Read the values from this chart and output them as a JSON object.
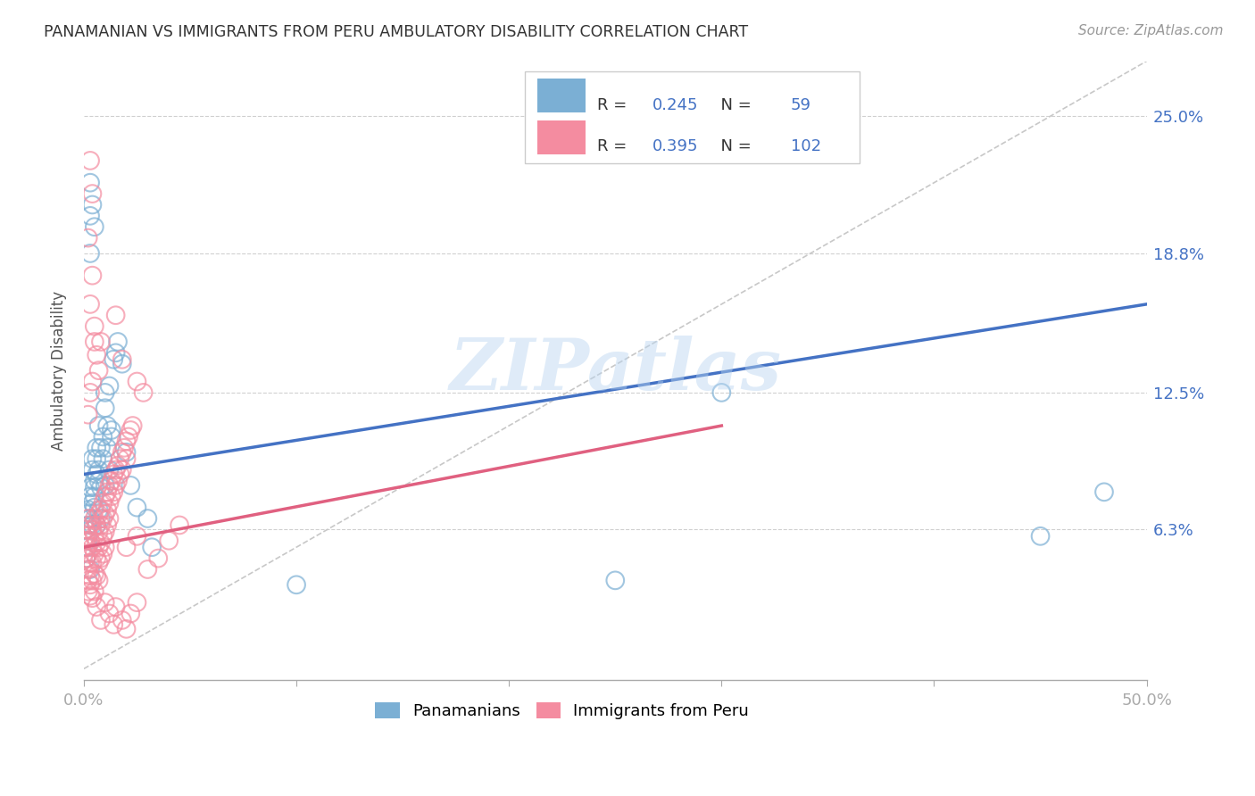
{
  "title": "PANAMANIAN VS IMMIGRANTS FROM PERU AMBULATORY DISABILITY CORRELATION CHART",
  "source": "Source: ZipAtlas.com",
  "ylabel": "Ambulatory Disability",
  "ytick_labels": [
    "6.3%",
    "12.5%",
    "18.8%",
    "25.0%"
  ],
  "ytick_values": [
    0.063,
    0.125,
    0.188,
    0.25
  ],
  "xlim": [
    0.0,
    0.5
  ],
  "ylim": [
    -0.005,
    0.275
  ],
  "watermark": "ZIPatlas",
  "blue_color": "#7bafd4",
  "pink_color": "#f48ca0",
  "line_blue": "#4472c4",
  "line_pink": "#e06080",
  "diagonal_color": "#c8c8c8",
  "panamanian_scatter": [
    [
      0.001,
      0.063
    ],
    [
      0.001,
      0.07
    ],
    [
      0.002,
      0.058
    ],
    [
      0.002,
      0.065
    ],
    [
      0.002,
      0.072
    ],
    [
      0.003,
      0.068
    ],
    [
      0.003,
      0.078
    ],
    [
      0.003,
      0.082
    ],
    [
      0.004,
      0.075
    ],
    [
      0.004,
      0.065
    ],
    [
      0.004,
      0.09
    ],
    [
      0.004,
      0.095
    ],
    [
      0.005,
      0.085
    ],
    [
      0.005,
      0.073
    ],
    [
      0.005,
      0.082
    ],
    [
      0.005,
      0.078
    ],
    [
      0.006,
      0.065
    ],
    [
      0.006,
      0.088
    ],
    [
      0.006,
      0.095
    ],
    [
      0.006,
      0.1
    ],
    [
      0.007,
      0.085
    ],
    [
      0.007,
      0.072
    ],
    [
      0.007,
      0.11
    ],
    [
      0.007,
      0.09
    ],
    [
      0.008,
      0.082
    ],
    [
      0.008,
      0.1
    ],
    [
      0.008,
      0.068
    ],
    [
      0.009,
      0.105
    ],
    [
      0.009,
      0.095
    ],
    [
      0.01,
      0.083
    ],
    [
      0.01,
      0.125
    ],
    [
      0.01,
      0.118
    ],
    [
      0.011,
      0.11
    ],
    [
      0.011,
      0.1
    ],
    [
      0.012,
      0.09
    ],
    [
      0.012,
      0.128
    ],
    [
      0.013,
      0.105
    ],
    [
      0.013,
      0.108
    ],
    [
      0.014,
      0.14
    ],
    [
      0.015,
      0.143
    ],
    [
      0.016,
      0.148
    ],
    [
      0.018,
      0.138
    ],
    [
      0.02,
      0.098
    ],
    [
      0.022,
      0.083
    ],
    [
      0.025,
      0.073
    ],
    [
      0.03,
      0.068
    ],
    [
      0.032,
      0.055
    ],
    [
      0.003,
      0.188
    ],
    [
      0.003,
      0.205
    ],
    [
      0.005,
      0.2
    ],
    [
      0.003,
      0.22
    ],
    [
      0.004,
      0.21
    ],
    [
      0.002,
      0.055
    ],
    [
      0.001,
      0.05
    ],
    [
      0.003,
      0.045
    ],
    [
      0.3,
      0.125
    ],
    [
      0.48,
      0.08
    ],
    [
      0.45,
      0.06
    ],
    [
      0.25,
      0.04
    ],
    [
      0.1,
      0.038
    ]
  ],
  "peru_scatter": [
    [
      0.001,
      0.063
    ],
    [
      0.001,
      0.058
    ],
    [
      0.001,
      0.055
    ],
    [
      0.001,
      0.05
    ],
    [
      0.002,
      0.068
    ],
    [
      0.002,
      0.06
    ],
    [
      0.002,
      0.052
    ],
    [
      0.002,
      0.045
    ],
    [
      0.002,
      0.04
    ],
    [
      0.002,
      0.035
    ],
    [
      0.003,
      0.065
    ],
    [
      0.003,
      0.058
    ],
    [
      0.003,
      0.048
    ],
    [
      0.003,
      0.042
    ],
    [
      0.003,
      0.038
    ],
    [
      0.003,
      0.033
    ],
    [
      0.004,
      0.063
    ],
    [
      0.004,
      0.055
    ],
    [
      0.004,
      0.048
    ],
    [
      0.004,
      0.04
    ],
    [
      0.004,
      0.032
    ],
    [
      0.005,
      0.068
    ],
    [
      0.005,
      0.06
    ],
    [
      0.005,
      0.052
    ],
    [
      0.005,
      0.043
    ],
    [
      0.005,
      0.035
    ],
    [
      0.006,
      0.065
    ],
    [
      0.006,
      0.057
    ],
    [
      0.006,
      0.05
    ],
    [
      0.006,
      0.042
    ],
    [
      0.007,
      0.07
    ],
    [
      0.007,
      0.062
    ],
    [
      0.007,
      0.055
    ],
    [
      0.007,
      0.048
    ],
    [
      0.007,
      0.04
    ],
    [
      0.008,
      0.072
    ],
    [
      0.008,
      0.065
    ],
    [
      0.008,
      0.057
    ],
    [
      0.008,
      0.05
    ],
    [
      0.009,
      0.075
    ],
    [
      0.009,
      0.068
    ],
    [
      0.009,
      0.06
    ],
    [
      0.009,
      0.052
    ],
    [
      0.01,
      0.078
    ],
    [
      0.01,
      0.07
    ],
    [
      0.01,
      0.062
    ],
    [
      0.01,
      0.055
    ],
    [
      0.011,
      0.08
    ],
    [
      0.011,
      0.072
    ],
    [
      0.011,
      0.065
    ],
    [
      0.012,
      0.083
    ],
    [
      0.012,
      0.075
    ],
    [
      0.012,
      0.068
    ],
    [
      0.013,
      0.085
    ],
    [
      0.013,
      0.078
    ],
    [
      0.014,
      0.088
    ],
    [
      0.014,
      0.08
    ],
    [
      0.015,
      0.09
    ],
    [
      0.015,
      0.083
    ],
    [
      0.016,
      0.092
    ],
    [
      0.016,
      0.085
    ],
    [
      0.017,
      0.095
    ],
    [
      0.017,
      0.088
    ],
    [
      0.018,
      0.098
    ],
    [
      0.018,
      0.09
    ],
    [
      0.019,
      0.1
    ],
    [
      0.02,
      0.103
    ],
    [
      0.02,
      0.095
    ],
    [
      0.021,
      0.105
    ],
    [
      0.022,
      0.108
    ],
    [
      0.023,
      0.11
    ],
    [
      0.002,
      0.115
    ],
    [
      0.003,
      0.125
    ],
    [
      0.004,
      0.13
    ],
    [
      0.003,
      0.165
    ],
    [
      0.004,
      0.178
    ],
    [
      0.005,
      0.148
    ],
    [
      0.002,
      0.195
    ],
    [
      0.003,
      0.23
    ],
    [
      0.004,
      0.215
    ],
    [
      0.005,
      0.155
    ],
    [
      0.006,
      0.142
    ],
    [
      0.007,
      0.135
    ],
    [
      0.008,
      0.148
    ],
    [
      0.015,
      0.16
    ],
    [
      0.018,
      0.14
    ],
    [
      0.025,
      0.13
    ],
    [
      0.028,
      0.125
    ],
    [
      0.015,
      0.028
    ],
    [
      0.018,
      0.022
    ],
    [
      0.02,
      0.018
    ],
    [
      0.022,
      0.025
    ],
    [
      0.025,
      0.03
    ],
    [
      0.014,
      0.02
    ],
    [
      0.012,
      0.025
    ],
    [
      0.01,
      0.03
    ],
    [
      0.008,
      0.022
    ],
    [
      0.006,
      0.028
    ],
    [
      0.03,
      0.045
    ],
    [
      0.035,
      0.05
    ],
    [
      0.04,
      0.058
    ],
    [
      0.045,
      0.065
    ],
    [
      0.02,
      0.055
    ],
    [
      0.025,
      0.06
    ]
  ],
  "blue_line_x": [
    0.0,
    0.5
  ],
  "blue_line_y": [
    0.088,
    0.165
  ],
  "pink_line_x": [
    0.0,
    0.3
  ],
  "pink_line_y": [
    0.055,
    0.11
  ]
}
